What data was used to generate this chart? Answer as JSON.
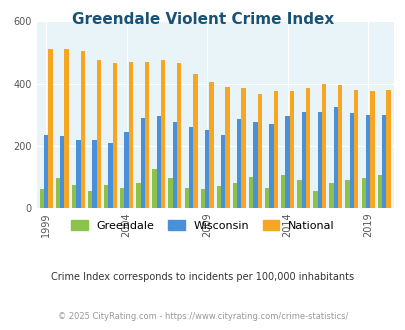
{
  "title": "Greendale Violent Crime Index",
  "title_color": "#1a5276",
  "subtitle": "Crime Index corresponds to incidents per 100,000 inhabitants",
  "footer": "© 2025 CityRating.com - https://www.cityrating.com/crime-statistics/",
  "years": [
    1999,
    2000,
    2001,
    2002,
    2003,
    2004,
    2005,
    2006,
    2007,
    2008,
    2009,
    2010,
    2011,
    2012,
    2013,
    2014,
    2015,
    2016,
    2017,
    2018,
    2019,
    2020
  ],
  "greendale": [
    60,
    95,
    75,
    55,
    75,
    65,
    80,
    125,
    95,
    65,
    60,
    70,
    80,
    100,
    65,
    105,
    90,
    55,
    80,
    90,
    95,
    105
  ],
  "wisconsin": [
    235,
    230,
    220,
    220,
    210,
    245,
    290,
    295,
    275,
    260,
    250,
    235,
    285,
    275,
    270,
    295,
    310,
    310,
    325,
    305,
    300,
    300
  ],
  "national": [
    510,
    510,
    505,
    475,
    465,
    470,
    470,
    475,
    465,
    430,
    405,
    390,
    385,
    365,
    375,
    375,
    385,
    400,
    395,
    380,
    375,
    380
  ],
  "greendale_color": "#8bc34a",
  "wisconsin_color": "#4a90d9",
  "national_color": "#f5a623",
  "bg_color": "#e8f4f8",
  "ylim": [
    0,
    600
  ],
  "yticks": [
    0,
    200,
    400,
    600
  ],
  "legend_labels": [
    "Greendale",
    "Wisconsin",
    "National"
  ],
  "bar_width": 0.27,
  "labeled_years": [
    1999,
    2004,
    2009,
    2014,
    2019
  ]
}
